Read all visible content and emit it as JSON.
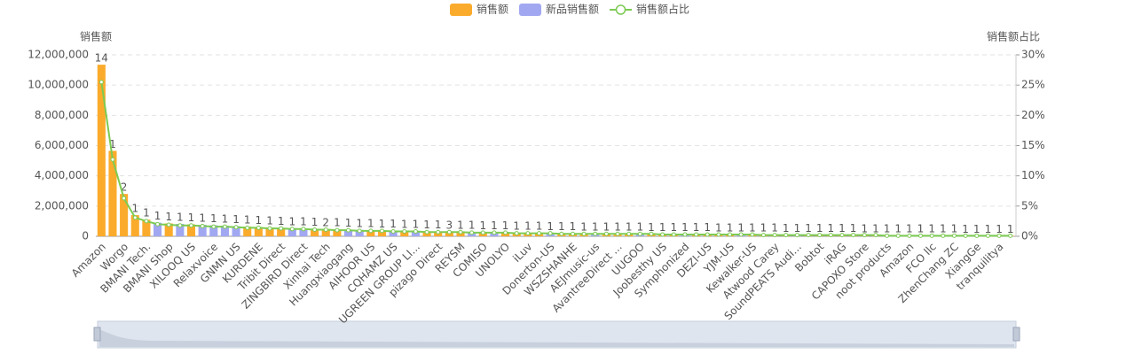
{
  "chart_data": {
    "type": "bar",
    "legend_position": "top",
    "y_axis_title": "销售额",
    "y2_axis_title": "销售额占比",
    "categories": [
      "Amazon",
      null,
      "Worgo",
      null,
      "BMANI Tech.",
      null,
      "BMANI Shop",
      null,
      "XILOOQ US",
      null,
      "Relaxvoice",
      null,
      "GNMN US",
      null,
      "KURDENE",
      null,
      "Tribit Direct",
      null,
      "ZINGBIRD Direct",
      null,
      "Xinhai Tech",
      null,
      "Huangxiaogang",
      null,
      "AIHOOR US",
      null,
      "CQHAMZ US",
      null,
      "UGREEN GROUP LI...",
      null,
      "pizago Direct",
      null,
      "REYSM",
      null,
      "COMISO",
      null,
      "UNOLYO",
      null,
      "iLuv",
      null,
      "Donerton-US",
      null,
      "WSZSHANHE",
      null,
      "AEJmusic-us",
      null,
      "AvantreeDirect ...",
      null,
      "UUGOO",
      null,
      "Joobesthy US",
      null,
      "Symphonized",
      null,
      "DEZI-US",
      null,
      "YJM-US",
      null,
      "Kewalker-US",
      null,
      "Atwood Carey",
      null,
      "SoundPEATS Audi...",
      null,
      "Bobtot",
      null,
      "iRAG",
      null,
      "CAPOXO Store",
      null,
      "noot products",
      null,
      "Amazon",
      null,
      "FCO llc",
      null,
      "ZhenChang ZC",
      null,
      "XiangGe",
      null,
      "tranquilitya",
      null
    ],
    "series": [
      {
        "name": "销售额",
        "color": "#fbab2c",
        "values": [
          11350000,
          5650000,
          2800000,
          1400000,
          1100000,
          null,
          850000,
          null,
          790000,
          null,
          null,
          null,
          null,
          640000,
          610000,
          580000,
          560000,
          null,
          null,
          500000,
          480000,
          460000,
          null,
          null,
          400000,
          385000,
          null,
          355000,
          null,
          325000,
          310000,
          300000,
          290000,
          null,
          270000,
          null,
          250000,
          240000,
          230000,
          220000,
          null,
          200000,
          195000,
          190000,
          null,
          180000,
          175000,
          170000,
          null,
          160000,
          155000,
          150000,
          null,
          140000,
          135000,
          130000,
          125000,
          null,
          115000,
          110000,
          105000,
          100000,
          null,
          92000,
          88000,
          84000,
          80000,
          76000,
          72000,
          68000,
          null,
          60000,
          57000,
          54000,
          51000,
          48000,
          45000,
          42000,
          39000,
          36000,
          33000,
          30000
        ]
      },
      {
        "name": "新品销售额",
        "color": "#a1a8f1",
        "values": [
          null,
          null,
          null,
          null,
          null,
          900000,
          null,
          820000,
          null,
          760000,
          730000,
          700000,
          670000,
          null,
          null,
          null,
          null,
          540000,
          520000,
          null,
          null,
          null,
          440000,
          420000,
          null,
          null,
          370000,
          null,
          340000,
          null,
          null,
          null,
          null,
          280000,
          null,
          260000,
          null,
          null,
          null,
          null,
          210000,
          null,
          null,
          null,
          185000,
          null,
          null,
          null,
          165000,
          null,
          null,
          null,
          145000,
          null,
          null,
          null,
          null,
          120000,
          null,
          null,
          null,
          null,
          96000,
          null,
          null,
          null,
          null,
          null,
          null,
          null,
          64000,
          null,
          null,
          null,
          null,
          null,
          null,
          null,
          null,
          null,
          null,
          null
        ]
      },
      {
        "name": "销售额占比",
        "color": "#7ccb52",
        "axis": "y2",
        "type": "line",
        "values": [
          25.5,
          12.7,
          6.3,
          3.1,
          2.5,
          2.0,
          1.9,
          1.8,
          1.8,
          1.7,
          1.6,
          1.6,
          1.5,
          1.4,
          1.4,
          1.3,
          1.3,
          1.2,
          1.2,
          1.1,
          1.1,
          1.0,
          1.0,
          0.9,
          0.9,
          0.9,
          0.8,
          0.8,
          0.8,
          0.7,
          0.7,
          0.7,
          0.7,
          0.6,
          0.6,
          0.6,
          0.6,
          0.5,
          0.5,
          0.5,
          0.5,
          0.4,
          0.4,
          0.4,
          0.4,
          0.4,
          0.4,
          0.4,
          0.4,
          0.4,
          0.3,
          0.3,
          0.3,
          0.3,
          0.3,
          0.3,
          0.3,
          0.3,
          0.3,
          0.2,
          0.2,
          0.2,
          0.2,
          0.2,
          0.2,
          0.2,
          0.2,
          0.2,
          0.2,
          0.2,
          0.1,
          0.1,
          0.1,
          0.1,
          0.1,
          0.1,
          0.1,
          0.1,
          0.1,
          0.1,
          0.1,
          0.1
        ]
      }
    ],
    "bar_labels": [
      14,
      1,
      2,
      1,
      1,
      1,
      1,
      1,
      1,
      1,
      1,
      1,
      1,
      1,
      1,
      1,
      1,
      1,
      1,
      1,
      2,
      1,
      1,
      1,
      1,
      1,
      1,
      1,
      1,
      1,
      1,
      3,
      1,
      1,
      1,
      1,
      1,
      1,
      1,
      1,
      1,
      1,
      1,
      1,
      1,
      1,
      1,
      1,
      1,
      1,
      1,
      1,
      1,
      1,
      1,
      1,
      1,
      1,
      1,
      1,
      1,
      1,
      1,
      1,
      1,
      1,
      1,
      1,
      1,
      1,
      1,
      1,
      1,
      1,
      1,
      1,
      1,
      1,
      1,
      1,
      1,
      1
    ],
    "ylim": [
      0,
      12000000
    ],
    "yticks": [
      0,
      {
        "value": 2000000,
        "label": "2,000,000"
      },
      {
        "value": 4000000,
        "label": "4,000,000"
      },
      {
        "value": 6000000,
        "label": "6,000,000"
      },
      {
        "value": 8000000,
        "label": "8,000,000"
      },
      {
        "value": 10000000,
        "label": "10,000,000"
      },
      {
        "value": 12000000,
        "label": "12,000,000"
      }
    ],
    "y2lim": [
      0,
      30
    ],
    "y2ticks": [
      {
        "value": 0,
        "label": "0%"
      },
      {
        "value": 5,
        "label": "5%"
      },
      {
        "value": 10,
        "label": "10%"
      },
      {
        "value": 15,
        "label": "15%"
      },
      {
        "value": 20,
        "label": "20%"
      },
      {
        "value": 25,
        "label": "25%"
      },
      {
        "value": 30,
        "label": "30%"
      }
    ],
    "grid": true
  }
}
